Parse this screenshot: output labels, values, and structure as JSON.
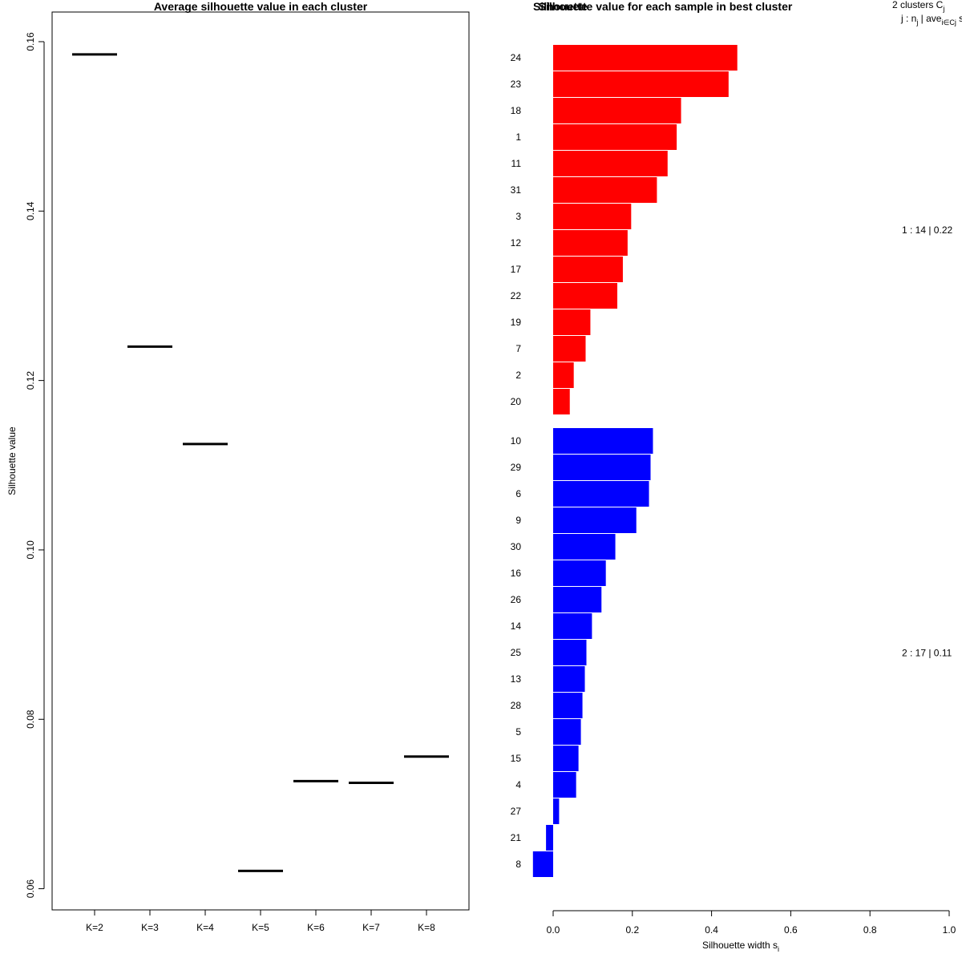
{
  "chart_data": [
    {
      "type": "scatter",
      "marker": "horizontal-segment",
      "title": "Average silhouette value in each cluster",
      "xlabel": "",
      "ylabel": "Silhouette value",
      "ylim": [
        0.0575,
        0.1635
      ],
      "yticks": [
        0.06,
        0.08,
        0.1,
        0.12,
        0.14,
        0.16
      ],
      "ytick_labels": [
        "0.06",
        "0.08",
        "0.10",
        "0.12",
        "0.14",
        "0.16"
      ],
      "categories": [
        "K=2",
        "K=3",
        "K=4",
        "K=5",
        "K=6",
        "K=7",
        "K=8"
      ],
      "values": [
        0.1585,
        0.124,
        0.1125,
        0.0621,
        0.0727,
        0.0725,
        0.0756
      ],
      "marker_color": "#000000"
    },
    {
      "type": "bar",
      "orientation": "horizontal",
      "title": "Silhouette value for each sample in best cluster",
      "title_overlap": "Silhouette",
      "xlabel": "Silhouette width s",
      "xlabel_sub": "i",
      "xlim": [
        -0.05,
        1.0
      ],
      "xticks": [
        0.0,
        0.2,
        0.4,
        0.6,
        0.8,
        1.0
      ],
      "xtick_labels": [
        "0.0",
        "0.2",
        "0.4",
        "0.6",
        "0.8",
        "1.0"
      ],
      "legend_header": {
        "line1": "2  clusters  C",
        "line1_sub": "j",
        "line2": "j :  n",
        "line2_sub1": "j",
        "line2_mid": " | ave",
        "line2_sub2": "i∈Cj",
        "line2_tail": "  s"
      },
      "clusters": [
        {
          "id": "1",
          "summary": "1 :  14  |  0.22",
          "color": "#ff0000",
          "samples": [
            "24",
            "23",
            "18",
            "1",
            "11",
            "31",
            "3",
            "12",
            "17",
            "22",
            "19",
            "7",
            "2",
            "20"
          ],
          "values": [
            0.465,
            0.443,
            0.323,
            0.312,
            0.289,
            0.262,
            0.197,
            0.188,
            0.176,
            0.162,
            0.094,
            0.082,
            0.052,
            0.042
          ]
        },
        {
          "id": "2",
          "summary": "2 :  17  |  0.11",
          "color": "#0000ff",
          "samples": [
            "10",
            "29",
            "6",
            "9",
            "30",
            "16",
            "26",
            "14",
            "25",
            "13",
            "28",
            "5",
            "15",
            "4",
            "27",
            "21",
            "8"
          ],
          "values": [
            0.252,
            0.246,
            0.242,
            0.21,
            0.157,
            0.133,
            0.122,
            0.098,
            0.084,
            0.08,
            0.074,
            0.07,
            0.064,
            0.058,
            0.015,
            -0.018,
            -0.051
          ]
        }
      ]
    }
  ]
}
